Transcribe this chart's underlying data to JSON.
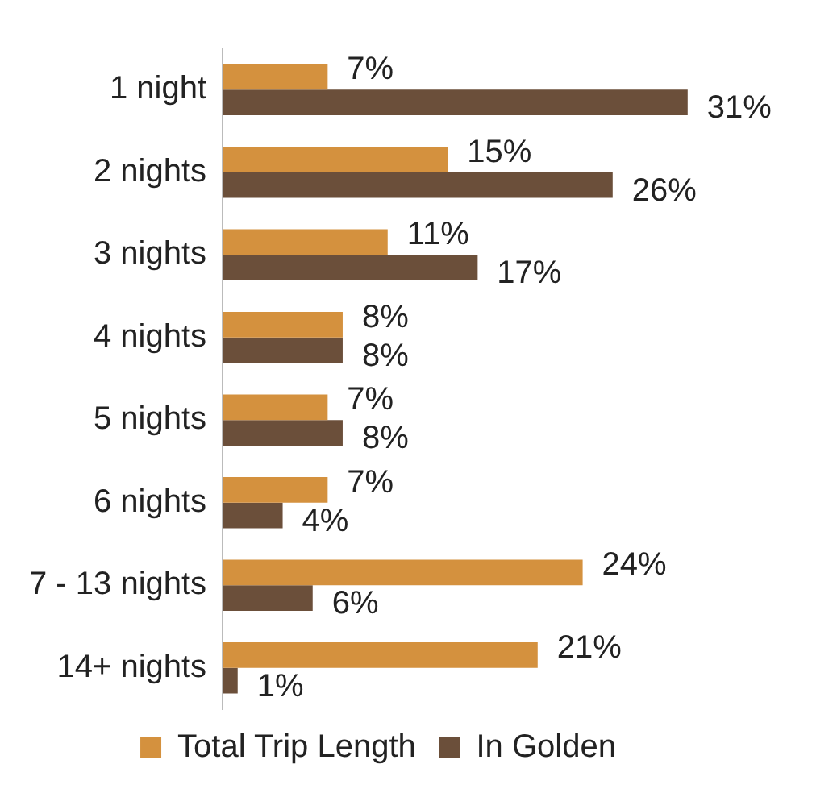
{
  "chart_data": {
    "type": "bar",
    "orientation": "horizontal",
    "categories": [
      "1 night",
      "2 nights",
      "3 nights",
      "4 nights",
      "5 nights",
      "6 nights",
      "7 - 13 nights",
      "14+ nights"
    ],
    "series": [
      {
        "name": "Total Trip Length",
        "color": "#d4913e",
        "values": [
          7,
          15,
          11,
          8,
          7,
          7,
          24,
          21
        ],
        "value_labels": [
          "7%",
          "15%",
          "11%",
          "8%",
          "7%",
          "7%",
          "24%",
          "21%"
        ]
      },
      {
        "name": "In Golden",
        "color": "#6b4f3a",
        "values": [
          31,
          26,
          17,
          8,
          8,
          4,
          6,
          1
        ],
        "value_labels": [
          "31%",
          "26%",
          "17%",
          "8%",
          "8%",
          "4%",
          "6%",
          "1%"
        ]
      }
    ],
    "legend": "bottom",
    "grid": false
  }
}
